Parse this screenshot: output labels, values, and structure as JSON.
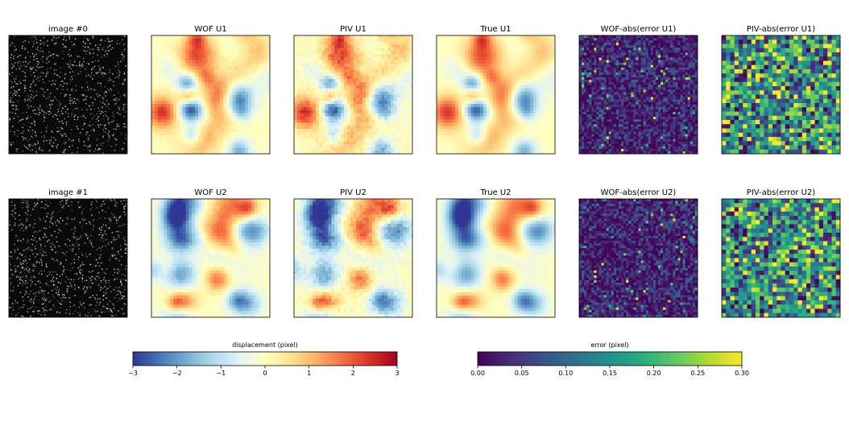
{
  "panels": [
    {
      "title": "image #0",
      "kind": "particles"
    },
    {
      "title": "WOF U1",
      "kind": "field"
    },
    {
      "title": "PIV U1",
      "kind": "field"
    },
    {
      "title": "True U1",
      "kind": "field"
    },
    {
      "title": "WOF-abs(error U1)",
      "kind": "error"
    },
    {
      "title": "PIV-abs(error U1)",
      "kind": "error"
    },
    {
      "title": "image #1",
      "kind": "particles"
    },
    {
      "title": "WOF U2",
      "kind": "field"
    },
    {
      "title": "PIV U2",
      "kind": "field"
    },
    {
      "title": "True U2",
      "kind": "field"
    },
    {
      "title": "WOF-abs(error U2)",
      "kind": "error"
    },
    {
      "title": "PIV-abs(error U2)",
      "kind": "error"
    }
  ],
  "colorbars": [
    {
      "label": "displacement (pixel)",
      "colormap": "RdYlBu_r",
      "range": [
        -3,
        3
      ],
      "ticks": [
        "−3",
        "−2",
        "−1",
        "0",
        "1",
        "2",
        "3"
      ]
    },
    {
      "label": "error (pixel)",
      "colormap": "viridis",
      "range": [
        0,
        0.3
      ],
      "ticks": [
        "0.00",
        "0.05",
        "0.10",
        "0.15",
        "0.20",
        "0.25",
        "0.30"
      ]
    }
  ],
  "chart_data": {
    "type": "heatmap",
    "rows": 2,
    "columns": 6,
    "panel_titles": [
      "image #0",
      "WOF U1",
      "PIV U1",
      "True U1",
      "WOF-abs(error U1)",
      "PIV-abs(error U1)",
      "image #1",
      "WOF U2",
      "PIV U2",
      "True U2",
      "WOF-abs(error U2)",
      "PIV-abs(error U2)"
    ],
    "displacement_range": [
      -3,
      3
    ],
    "error_range": [
      0,
      0.3
    ],
    "colors": {
      "displacement_low": "#313695",
      "displacement_mid": "#ffffbf",
      "displacement_high": "#a50026",
      "error_low": "#440154",
      "error_high": "#fde725"
    }
  }
}
